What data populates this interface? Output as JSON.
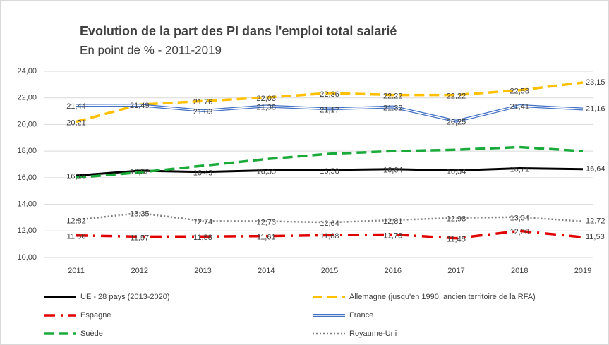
{
  "chart_data": {
    "type": "line",
    "title": "Evolution de la part des PI dans l'emploi total salarié",
    "subtitle": "En point de %  - 2011-2019",
    "categories": [
      "2011",
      "2012",
      "2013",
      "2014",
      "2015",
      "2016",
      "2017",
      "2018",
      "2019"
    ],
    "ylim": [
      10,
      24
    ],
    "yticks": [
      {
        "value": 10,
        "label": "10,00"
      },
      {
        "value": 12,
        "label": "12,00"
      },
      {
        "value": 14,
        "label": "14,00"
      },
      {
        "value": 16,
        "label": "16,00"
      },
      {
        "value": 18,
        "label": "18,00"
      },
      {
        "value": 20,
        "label": "20,00"
      },
      {
        "value": 22,
        "label": "22,00"
      },
      {
        "value": 24,
        "label": "24,00"
      }
    ],
    "series": [
      {
        "name": "UE - 28 pays (2013-2020)",
        "color": "#000000",
        "style": "solid",
        "values": [
          16.16,
          16.52,
          16.43,
          16.55,
          16.58,
          16.64,
          16.54,
          16.71,
          16.64
        ],
        "value_labels": [
          "16,16",
          "16,52",
          "16,43",
          "16,55",
          "16,58",
          "16,64",
          "16,54",
          "16,71",
          "16,64"
        ]
      },
      {
        "name": "Allemagne (jusqu'en 1990, ancien territoire de la RFA)",
        "color": "#ffc000",
        "style": "dashed",
        "values": [
          20.21,
          21.49,
          21.76,
          22.03,
          22.36,
          22.22,
          22.22,
          22.58,
          23.15
        ],
        "value_labels": [
          "20,21",
          "21,49",
          "21,76",
          "22,03",
          "22,36",
          "22,22",
          "22,22",
          "22,58",
          "23,15"
        ]
      },
      {
        "name": "Espagne",
        "color": "#e00000",
        "style": "dashdot",
        "values": [
          11.66,
          11.57,
          11.58,
          11.61,
          11.68,
          11.73,
          11.45,
          12.0,
          11.53
        ],
        "value_labels": [
          "11,66",
          "11,57",
          "11,58",
          "11,61",
          "11,68",
          "11,73",
          "11,45",
          "12,00",
          "11,53"
        ]
      },
      {
        "name": "France",
        "color": "#4472c4",
        "style": "double",
        "values": [
          21.44,
          21.45,
          21.03,
          21.38,
          21.17,
          21.32,
          20.25,
          21.41,
          21.16
        ],
        "value_labels": [
          "21,44",
          null,
          "21,03",
          "21,38",
          "21,17",
          "21,32",
          "20,25",
          "21,41",
          "21,16"
        ]
      },
      {
        "name": "Suède",
        "color": "#1aaa3a",
        "style": "dashed",
        "values": [
          16.0,
          16.4,
          16.9,
          17.4,
          17.8,
          18.0,
          18.1,
          18.3,
          18.0
        ]
      },
      {
        "name": "Royaume-Uni",
        "color": "#7f7f7f",
        "style": "dotted",
        "values": [
          12.82,
          13.35,
          12.74,
          12.73,
          12.64,
          12.81,
          12.98,
          13.04,
          12.72
        ],
        "value_labels": [
          "12,82",
          "13,35",
          "12,74",
          "12,73",
          "12,64",
          "12,81",
          "12,98",
          "13,04",
          "12,72"
        ]
      }
    ]
  }
}
